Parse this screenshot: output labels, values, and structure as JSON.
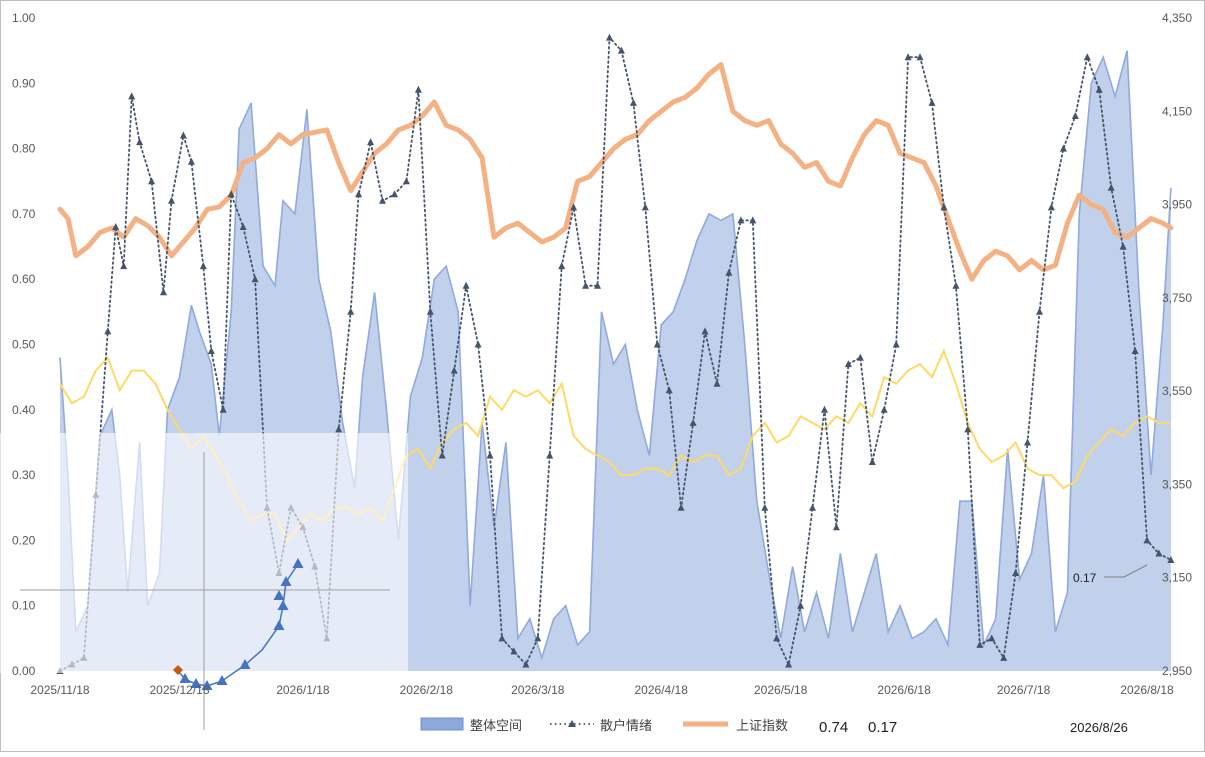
{
  "chart_data": {
    "type": "area",
    "title": "",
    "x_tick_labels": [
      "2025/11/18",
      "2025/12/18",
      "2026/1/18",
      "2026/2/18",
      "2026/3/18",
      "2026/4/18",
      "2026/5/18",
      "2026/6/18",
      "2026/7/18",
      "2026/8/18"
    ],
    "left_axis": {
      "ylim": [
        0,
        1.0
      ],
      "tick_labels": [
        "0.00",
        "0.10",
        "0.20",
        "0.30",
        "0.40",
        "0.50",
        "0.60",
        "0.70",
        "0.80",
        "0.90",
        "1.00"
      ]
    },
    "right_axis": {
      "ylim": [
        2950,
        4350
      ],
      "tick_labels": [
        "2,950",
        "3,150",
        "3,350",
        "3,550",
        "3,750",
        "3,950",
        "4,150",
        "4,350"
      ]
    },
    "colors": {
      "area": "#8ea9db",
      "area_line": "#8faadc",
      "dots": "#44546a",
      "index": "#f4b183",
      "yellow": "#ffd966",
      "inset_marker": "#4472c4"
    },
    "series": [
      {
        "name": "整体空间",
        "kind": "area",
        "axis": "left",
        "x": [
          "2025/11/18",
          "2025/11/20",
          "2025/11/22",
          "2025/11/25",
          "2025/11/28",
          "2025/12/1",
          "2025/12/3",
          "2025/12/5",
          "2025/12/8",
          "2025/12/10",
          "2025/12/13",
          "2025/12/15",
          "2025/12/18",
          "2025/12/21",
          "2025/12/23",
          "2025/12/26",
          "2025/12/28",
          "2025/12/31",
          "2026/1/2",
          "2026/1/5",
          "2026/1/8",
          "2026/1/11",
          "2026/1/13",
          "2026/1/16",
          "2026/1/19",
          "2026/1/22",
          "2026/1/25",
          "2026/1/28",
          "2026/1/31",
          "2026/2/2",
          "2026/2/5",
          "2026/2/8",
          "2026/2/11",
          "2026/2/14",
          "2026/2/17",
          "2026/2/20",
          "2026/2/23",
          "2026/2/26",
          "2026/3/1",
          "2026/3/4",
          "2026/3/7",
          "2026/3/10",
          "2026/3/13",
          "2026/3/16",
          "2026/3/19",
          "2026/3/22",
          "2026/3/25",
          "2026/3/28",
          "2026/3/31",
          "2026/4/3",
          "2026/4/6",
          "2026/4/9",
          "2026/4/12",
          "2026/4/15",
          "2026/4/18",
          "2026/4/21",
          "2026/4/24",
          "2026/4/27",
          "2026/4/30",
          "2026/5/3",
          "2026/5/6",
          "2026/5/9",
          "2026/5/12",
          "2026/5/15",
          "2026/5/18",
          "2026/5/21",
          "2026/5/24",
          "2026/5/27",
          "2026/5/30",
          "2026/6/2",
          "2026/6/5",
          "2026/6/8",
          "2026/6/11",
          "2026/6/14",
          "2026/6/17",
          "2026/6/20",
          "2026/6/23",
          "2026/6/26",
          "2026/6/29",
          "2026/7/2",
          "2026/7/5",
          "2026/7/8",
          "2026/7/11",
          "2026/7/14",
          "2026/7/17",
          "2026/7/20",
          "2026/7/23",
          "2026/7/26",
          "2026/7/29",
          "2026/8/1",
          "2026/8/4",
          "2026/8/7",
          "2026/8/10",
          "2026/8/13",
          "2026/8/16",
          "2026/8/19",
          "2026/8/22",
          "2026/8/24"
        ],
        "values": [
          0.48,
          0.3,
          0.06,
          0.1,
          0.36,
          0.4,
          0.3,
          0.12,
          0.35,
          0.1,
          0.15,
          0.4,
          0.45,
          0.56,
          0.52,
          0.47,
          0.36,
          0.55,
          0.83,
          0.87,
          0.62,
          0.59,
          0.72,
          0.7,
          0.86,
          0.6,
          0.52,
          0.38,
          0.28,
          0.45,
          0.58,
          0.4,
          0.2,
          0.42,
          0.48,
          0.6,
          0.62,
          0.55,
          0.1,
          0.38,
          0.22,
          0.35,
          0.05,
          0.08,
          0.02,
          0.08,
          0.1,
          0.04,
          0.06,
          0.55,
          0.47,
          0.5,
          0.4,
          0.33,
          0.53,
          0.55,
          0.6,
          0.66,
          0.7,
          0.69,
          0.7,
          0.5,
          0.26,
          0.15,
          0.05,
          0.16,
          0.06,
          0.12,
          0.05,
          0.18,
          0.06,
          0.12,
          0.18,
          0.06,
          0.1,
          0.05,
          0.06,
          0.08,
          0.04,
          0.26,
          0.26,
          0.04,
          0.08,
          0.34,
          0.14,
          0.18,
          0.3,
          0.06,
          0.12,
          0.7,
          0.9,
          0.94,
          0.88,
          0.95,
          0.58,
          0.3,
          0.53,
          0.74
        ]
      },
      {
        "name": "散户情绪",
        "kind": "dotted-line-with-triangles",
        "axis": "left",
        "x": [
          "2025/11/18",
          "2025/11/21",
          "2025/11/24",
          "2025/11/27",
          "2025/11/30",
          "2025/12/2",
          "2025/12/4",
          "2025/12/6",
          "2025/12/8",
          "2025/12/11",
          "2025/12/14",
          "2025/12/16",
          "2025/12/19",
          "2025/12/21",
          "2025/12/24",
          "2025/12/26",
          "2025/12/29",
          "2025/12/31",
          "2026/1/3",
          "2026/1/6",
          "2026/1/9",
          "2026/1/12",
          "2026/1/15",
          "2026/1/18",
          "2026/1/21",
          "2026/1/24",
          "2026/1/27",
          "2026/1/30",
          "2026/2/1",
          "2026/2/4",
          "2026/2/7",
          "2026/2/10",
          "2026/2/13",
          "2026/2/16",
          "2026/2/19",
          "2026/2/22",
          "2026/2/25",
          "2026/2/28",
          "2026/3/3",
          "2026/3/6",
          "2026/3/9",
          "2026/3/12",
          "2026/3/15",
          "2026/3/18",
          "2026/3/21",
          "2026/3/24",
          "2026/3/27",
          "2026/3/30",
          "2026/4/2",
          "2026/4/5",
          "2026/4/8",
          "2026/4/11",
          "2026/4/14",
          "2026/4/17",
          "2026/4/20",
          "2026/4/23",
          "2026/4/26",
          "2026/4/29",
          "2026/5/2",
          "2026/5/5",
          "2026/5/8",
          "2026/5/11",
          "2026/5/14",
          "2026/5/17",
          "2026/5/20",
          "2026/5/23",
          "2026/5/26",
          "2026/5/29",
          "2026/6/1",
          "2026/6/4",
          "2026/6/7",
          "2026/6/10",
          "2026/6/13",
          "2026/6/16",
          "2026/6/19",
          "2026/6/22",
          "2026/6/25",
          "2026/6/28",
          "2026/7/1",
          "2026/7/4",
          "2026/7/7",
          "2026/7/10",
          "2026/7/13",
          "2026/7/16",
          "2026/7/19",
          "2026/7/22",
          "2026/7/25",
          "2026/7/28",
          "2026/7/31",
          "2026/8/3",
          "2026/8/6",
          "2026/8/9",
          "2026/8/12",
          "2026/8/15",
          "2026/8/18",
          "2026/8/21",
          "2026/8/24"
        ],
        "values": [
          0.0,
          0.01,
          0.02,
          0.27,
          0.52,
          0.68,
          0.62,
          0.88,
          0.81,
          0.75,
          0.58,
          0.72,
          0.82,
          0.78,
          0.62,
          0.49,
          0.4,
          0.73,
          0.68,
          0.6,
          0.25,
          0.15,
          0.25,
          0.22,
          0.16,
          0.05,
          0.37,
          0.55,
          0.73,
          0.81,
          0.72,
          0.73,
          0.75,
          0.89,
          0.55,
          0.33,
          0.46,
          0.59,
          0.5,
          0.33,
          0.05,
          0.03,
          0.01,
          0.05,
          0.33,
          0.62,
          0.71,
          0.59,
          0.59,
          0.97,
          0.95,
          0.87,
          0.71,
          0.5,
          0.43,
          0.25,
          0.38,
          0.52,
          0.44,
          0.61,
          0.69,
          0.69,
          0.25,
          0.05,
          0.01,
          0.1,
          0.25,
          0.4,
          0.22,
          0.47,
          0.48,
          0.32,
          0.4,
          0.5,
          0.94,
          0.94,
          0.87,
          0.71,
          0.59,
          0.37,
          0.04,
          0.05,
          0.02,
          0.15,
          0.35,
          0.55,
          0.71,
          0.8,
          0.85,
          0.94,
          0.89,
          0.74,
          0.65,
          0.49,
          0.2,
          0.18,
          0.17
        ]
      },
      {
        "name": "上证指数",
        "kind": "thick-line",
        "axis": "right",
        "x": [
          "2025/11/18",
          "2025/11/20",
          "2025/11/22",
          "2025/11/25",
          "2025/11/28",
          "2025/12/1",
          "2025/12/4",
          "2025/12/7",
          "2025/12/10",
          "2025/12/13",
          "2025/12/16",
          "2025/12/19",
          "2025/12/22",
          "2025/12/25",
          "2025/12/28",
          "2025/12/31",
          "2026/1/3",
          "2026/1/6",
          "2026/1/9",
          "2026/1/12",
          "2026/1/15",
          "2026/1/18",
          "2026/1/21",
          "2026/1/24",
          "2026/1/27",
          "2026/1/30",
          "2026/2/2",
          "2026/2/5",
          "2026/2/8",
          "2026/2/11",
          "2026/2/14",
          "2026/2/17",
          "2026/2/20",
          "2026/2/23",
          "2026/2/26",
          "2026/3/1",
          "2026/3/4",
          "2026/3/7",
          "2026/3/10",
          "2026/3/13",
          "2026/3/16",
          "2026/3/19",
          "2026/3/22",
          "2026/3/25",
          "2026/3/28",
          "2026/3/31",
          "2026/4/3",
          "2026/4/6",
          "2026/4/9",
          "2026/4/12",
          "2026/4/15",
          "2026/4/18",
          "2026/4/21",
          "2026/4/24",
          "2026/4/27",
          "2026/4/30",
          "2026/5/3",
          "2026/5/6",
          "2026/5/9",
          "2026/5/12",
          "2026/5/15",
          "2026/5/18",
          "2026/5/21",
          "2026/5/24",
          "2026/5/27",
          "2026/5/30",
          "2026/6/2",
          "2026/6/5",
          "2026/6/8",
          "2026/6/11",
          "2026/6/14",
          "2026/6/17",
          "2026/6/20",
          "2026/6/23",
          "2026/6/26",
          "2026/6/29",
          "2026/7/2",
          "2026/7/5",
          "2026/7/8",
          "2026/7/11",
          "2026/7/14",
          "2026/7/17",
          "2026/7/20",
          "2026/7/23",
          "2026/7/26",
          "2026/7/29",
          "2026/8/1",
          "2026/8/4",
          "2026/8/7",
          "2026/8/10",
          "2026/8/13",
          "2026/8/16",
          "2026/8/19",
          "2026/8/22",
          "2026/8/24"
        ],
        "values": [
          3940,
          3920,
          3840,
          3860,
          3890,
          3900,
          3880,
          3920,
          3905,
          3880,
          3840,
          3870,
          3900,
          3940,
          3945,
          3970,
          4040,
          4050,
          4070,
          4100,
          4080,
          4100,
          4105,
          4110,
          4040,
          3980,
          4020,
          4060,
          4080,
          4110,
          4120,
          4140,
          4170,
          4120,
          4110,
          4090,
          4050,
          3880,
          3900,
          3910,
          3890,
          3870,
          3880,
          3900,
          4000,
          4010,
          4040,
          4070,
          4090,
          4100,
          4130,
          4150,
          4170,
          4180,
          4200,
          4230,
          4250,
          4150,
          4130,
          4120,
          4130,
          4080,
          4060,
          4030,
          4040,
          4000,
          3990,
          4050,
          4100,
          4130,
          4120,
          4060,
          4050,
          4040,
          3990,
          3920,
          3850,
          3790,
          3830,
          3850,
          3840,
          3810,
          3830,
          3810,
          3820,
          3910,
          3970,
          3950,
          3940,
          3890,
          3880,
          3900,
          3920,
          3910,
          3900
        ],
        "annotations": [
          "0.74",
          "0.17"
        ]
      },
      {
        "kind": "thin-line",
        "axis": "left",
        "x": [
          "2025/11/18",
          "2025/11/21",
          "2025/11/24",
          "2025/11/27",
          "2025/11/30",
          "2025/12/3",
          "2025/12/6",
          "2025/12/9",
          "2025/12/12",
          "2025/12/15",
          "2025/12/18",
          "2025/12/21",
          "2025/12/24",
          "2025/12/27",
          "2025/12/30",
          "2026/1/2",
          "2026/1/5",
          "2026/1/8",
          "2026/1/11",
          "2026/1/14",
          "2026/1/17",
          "2026/1/20",
          "2026/1/23",
          "2026/1/26",
          "2026/1/29",
          "2026/2/1",
          "2026/2/4",
          "2026/2/7",
          "2026/2/10",
          "2026/2/13",
          "2026/2/16",
          "2026/2/19",
          "2026/2/22",
          "2026/2/25",
          "2026/2/28",
          "2026/3/3",
          "2026/3/6",
          "2026/3/9",
          "2026/3/12",
          "2026/3/15",
          "2026/3/18",
          "2026/3/21",
          "2026/3/24",
          "2026/3/27",
          "2026/3/30",
          "2026/4/2",
          "2026/4/5",
          "2026/4/8",
          "2026/4/11",
          "2026/4/14",
          "2026/4/17",
          "2026/4/20",
          "2026/4/23",
          "2026/4/26",
          "2026/4/29",
          "2026/5/2",
          "2026/5/5",
          "2026/5/8",
          "2026/5/11",
          "2026/5/14",
          "2026/5/17",
          "2026/5/20",
          "2026/5/23",
          "2026/5/26",
          "2026/5/29",
          "2026/6/1",
          "2026/6/4",
          "2026/6/7",
          "2026/6/10",
          "2026/6/13",
          "2026/6/16",
          "2026/6/19",
          "2026/6/22",
          "2026/6/25",
          "2026/6/28",
          "2026/7/1",
          "2026/7/4",
          "2026/7/7",
          "2026/7/10",
          "2026/7/13",
          "2026/7/16",
          "2026/7/19",
          "2026/7/22",
          "2026/7/25",
          "2026/7/28",
          "2026/7/31",
          "2026/8/3",
          "2026/8/6",
          "2026/8/9",
          "2026/8/12",
          "2026/8/15",
          "2026/8/18",
          "2026/8/21",
          "2026/8/24"
        ],
        "values": [
          0.44,
          0.41,
          0.42,
          0.46,
          0.48,
          0.43,
          0.46,
          0.46,
          0.44,
          0.4,
          0.37,
          0.34,
          0.36,
          0.33,
          0.3,
          0.26,
          0.23,
          0.24,
          0.24,
          0.2,
          0.22,
          0.24,
          0.23,
          0.25,
          0.25,
          0.24,
          0.25,
          0.23,
          0.28,
          0.33,
          0.34,
          0.31,
          0.35,
          0.37,
          0.38,
          0.36,
          0.42,
          0.4,
          0.43,
          0.42,
          0.43,
          0.41,
          0.44,
          0.36,
          0.34,
          0.33,
          0.32,
          0.3,
          0.3,
          0.31,
          0.31,
          0.3,
          0.33,
          0.32,
          0.33,
          0.33,
          0.3,
          0.31,
          0.36,
          0.38,
          0.35,
          0.36,
          0.39,
          0.38,
          0.37,
          0.39,
          0.38,
          0.41,
          0.39,
          0.45,
          0.44,
          0.46,
          0.47,
          0.45,
          0.49,
          0.44,
          0.38,
          0.34,
          0.32,
          0.33,
          0.35,
          0.31,
          0.3,
          0.3,
          0.28,
          0.29,
          0.33,
          0.35,
          0.37,
          0.36,
          0.38,
          0.39,
          0.38,
          0.38
        ]
      }
    ],
    "legend": {
      "position": "bottom"
    },
    "grid": false,
    "stats": [
      "0.74",
      "0.17"
    ],
    "date_label": "2026/8/26",
    "callout": "0.17"
  }
}
